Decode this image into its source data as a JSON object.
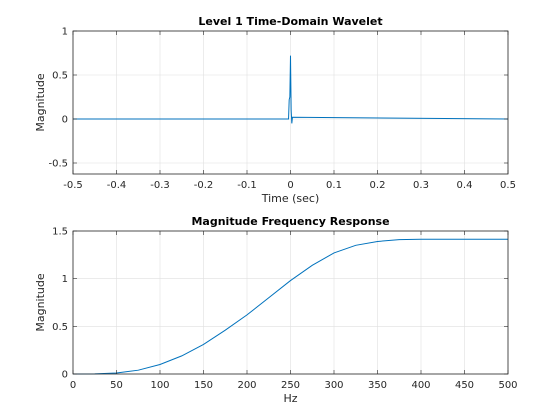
{
  "chart_data": [
    {
      "type": "line",
      "title": "Level 1 Time-Domain Wavelet",
      "xlabel": "Time (sec)",
      "ylabel": "Magnitude",
      "xlim": [
        -0.5,
        0.5
      ],
      "ylim": [
        -0.625,
        1
      ],
      "xticks": [
        "-0.5",
        "-0.4",
        "-0.3",
        "-0.2",
        "-0.1",
        "0",
        "0.1",
        "0.2",
        "0.3",
        "0.4",
        "0.5"
      ],
      "xtick_values": [
        -0.5,
        -0.4,
        -0.3,
        -0.2,
        -0.1,
        0,
        0.1,
        0.2,
        0.3,
        0.4,
        0.5
      ],
      "yticks": [
        "-0.5",
        "0",
        "0.5",
        "1"
      ],
      "ytick_values": [
        -0.5,
        0,
        0.5,
        1
      ],
      "grid": true,
      "series": [
        {
          "color": "#0072bd",
          "x": [
            -0.5,
            -0.0045,
            -0.003,
            -0.0015,
            0,
            0.0015,
            0.003,
            0.0045,
            0.5
          ],
          "y": [
            0,
            0,
            0.22,
            0.25,
            0.72,
            0.1,
            -0.05,
            0.02,
            0
          ]
        }
      ]
    },
    {
      "type": "line",
      "title": "Magnitude Frequency Response",
      "xlabel": "Hz",
      "ylabel": "Magnitude",
      "xlim": [
        0,
        500
      ],
      "ylim": [
        0,
        1.5
      ],
      "xticks": [
        "0",
        "50",
        "100",
        "150",
        "200",
        "250",
        "300",
        "350",
        "400",
        "450",
        "500"
      ],
      "xtick_values": [
        0,
        50,
        100,
        150,
        200,
        250,
        300,
        350,
        400,
        450,
        500
      ],
      "yticks": [
        "0",
        "0.5",
        "1",
        "1.5"
      ],
      "ytick_values": [
        0,
        0.5,
        1,
        1.5
      ],
      "grid": true,
      "series": [
        {
          "color": "#0072bd",
          "x": [
            0,
            25,
            50,
            75,
            100,
            125,
            150,
            175,
            200,
            225,
            250,
            275,
            300,
            325,
            350,
            375,
            400,
            425,
            450,
            475,
            500
          ],
          "y": [
            0,
            0.001,
            0.01,
            0.04,
            0.1,
            0.19,
            0.31,
            0.46,
            0.62,
            0.8,
            0.98,
            1.14,
            1.27,
            1.35,
            1.39,
            1.41,
            1.414,
            1.414,
            1.414,
            1.414,
            1.414
          ]
        }
      ]
    }
  ]
}
